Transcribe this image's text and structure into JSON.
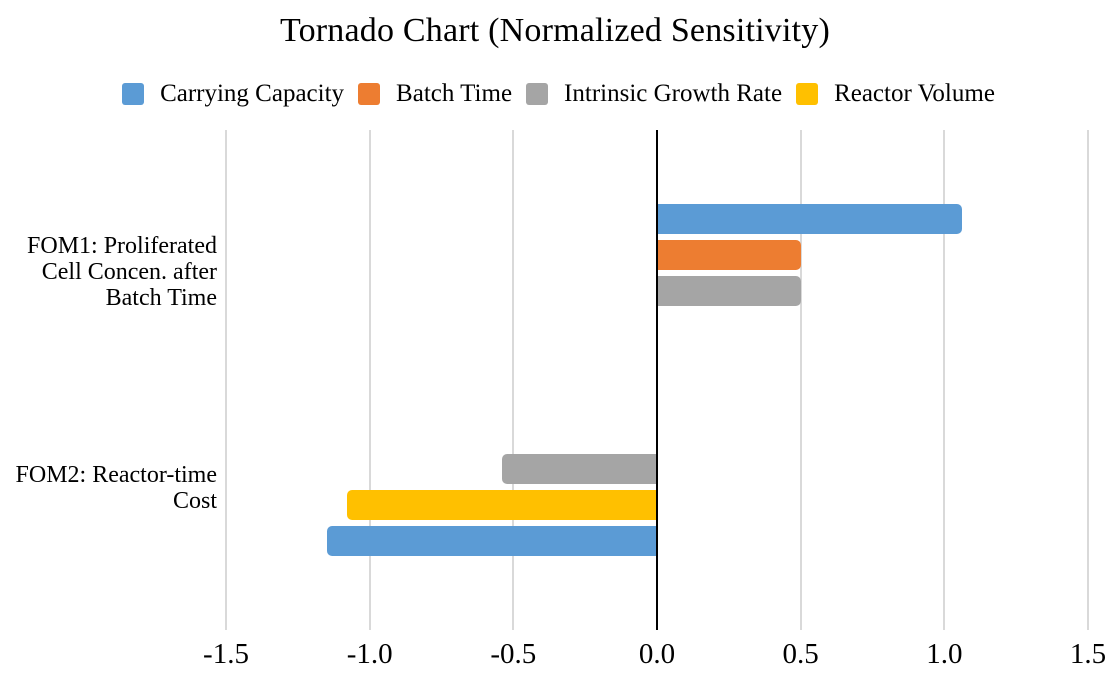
{
  "chart_data": {
    "type": "bar",
    "orientation": "horizontal",
    "title": "Tornado Chart (Normalized Sensitivity)",
    "categories": [
      {
        "label": "FOM1: Proliferated Cell Concen. after Batch Time",
        "label_lines": [
          "FOM1: Proliferated",
          "Cell Concen. after",
          "Batch Time"
        ]
      },
      {
        "label": "FOM2: Reactor-time Cost",
        "label_lines": [
          "FOM2: Reactor-time",
          "Cost"
        ]
      }
    ],
    "series": [
      {
        "name": "Carrying Capacity",
        "color": "#5B9BD5",
        "values": [
          1.06,
          -1.15
        ]
      },
      {
        "name": "Batch Time",
        "color": "#ED7D31",
        "values": [
          0.5,
          null
        ]
      },
      {
        "name": "Intrinsic Growth Rate",
        "color": "#A5A5A5",
        "values": [
          0.5,
          -0.54
        ]
      },
      {
        "name": "Reactor Volume",
        "color": "#FFC000",
        "values": [
          null,
          -1.08
        ]
      }
    ],
    "bar_display_order": [
      [
        "Carrying Capacity",
        "Batch Time",
        "Intrinsic Growth Rate"
      ],
      [
        "Intrinsic Growth Rate",
        "Reactor Volume",
        "Carrying Capacity"
      ]
    ],
    "xlim": [
      -1.5,
      1.5
    ],
    "xticks": [
      {
        "value": -1.5,
        "label": "-1.5"
      },
      {
        "value": -1.0,
        "label": "-1.0"
      },
      {
        "value": -0.5,
        "label": "-0.5"
      },
      {
        "value": 0.0,
        "label": "0.0"
      },
      {
        "value": 0.5,
        "label": "0.5"
      },
      {
        "value": 1.0,
        "label": "1.0"
      },
      {
        "value": 1.5,
        "label": "1.5"
      }
    ],
    "grid": true,
    "legend_position": "top",
    "axis_color": "#000000",
    "gridline_color": "#D9D9D9",
    "background_color": "#FFFFFF"
  }
}
